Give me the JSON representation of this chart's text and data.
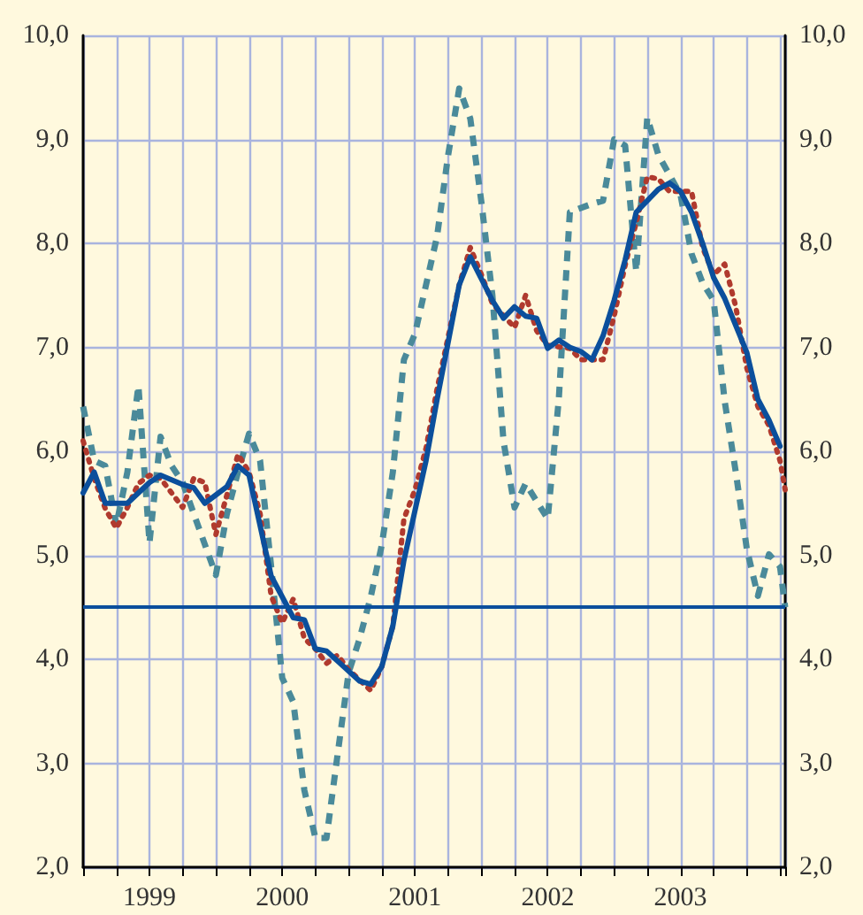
{
  "chart_data": {
    "type": "line",
    "xlim": [
      "1999-01",
      "2004-04-15"
    ],
    "xticks": [
      {
        "value": "1999-01",
        "label": null
      },
      {
        "value": "1999-04",
        "label": null
      },
      {
        "value": "1999-07",
        "label": "1999"
      },
      {
        "value": "1999-10",
        "label": null
      },
      {
        "value": "2000-01",
        "label": null
      },
      {
        "value": "2000-04",
        "label": null
      },
      {
        "value": "2000-07",
        "label": "2000"
      },
      {
        "value": "2000-10",
        "label": null
      },
      {
        "value": "2001-01",
        "label": null
      },
      {
        "value": "2001-04",
        "label": null
      },
      {
        "value": "2001-07",
        "label": "2001"
      },
      {
        "value": "2001-10",
        "label": null
      },
      {
        "value": "2002-01",
        "label": null
      },
      {
        "value": "2002-04",
        "label": null
      },
      {
        "value": "2002-07",
        "label": "2002"
      },
      {
        "value": "2002-10",
        "label": null
      },
      {
        "value": "2003-01",
        "label": null
      },
      {
        "value": "2003-04",
        "label": null
      },
      {
        "value": "2003-07",
        "label": "2003"
      },
      {
        "value": "2003-10",
        "label": null
      },
      {
        "value": "2004-01",
        "label": null
      },
      {
        "value": "2004-04",
        "label": null
      }
    ],
    "ylim": [
      2,
      10
    ],
    "yticks": [
      {
        "value": 2,
        "label": "2,0"
      },
      {
        "value": 3,
        "label": "3,0"
      },
      {
        "value": 4,
        "label": "4,0"
      },
      {
        "value": 5,
        "label": "5,0"
      },
      {
        "value": 6,
        "label": "6,0"
      },
      {
        "value": 7,
        "label": "7,0"
      },
      {
        "value": 8,
        "label": "8,0"
      },
      {
        "value": 9,
        "label": "9,0"
      },
      {
        "value": 10,
        "label": "10,0"
      }
    ],
    "y2lim": [
      2,
      10
    ],
    "y2ticks": [
      {
        "value": 2,
        "label": "2,0"
      },
      {
        "value": 3,
        "label": "3,0"
      },
      {
        "value": 4,
        "label": "4,0"
      },
      {
        "value": 5,
        "label": "5,0"
      },
      {
        "value": 6,
        "label": "6,0"
      },
      {
        "value": 7,
        "label": "7,0"
      },
      {
        "value": 8,
        "label": "8,0"
      },
      {
        "value": 9,
        "label": "9,0"
      },
      {
        "value": 10,
        "label": "10,0"
      }
    ],
    "grid": true,
    "marker": "none",
    "ref_lines": [
      {
        "axis": "y",
        "value": 4.5,
        "color": "#0b4f9c",
        "line_style": "solid"
      }
    ],
    "series": [
      {
        "color": "#4a8a9a",
        "line_style": "dashed",
        "x": [
          "1999-01",
          "1999-02",
          "1999-03",
          "1999-04",
          "1999-05",
          "1999-06",
          "1999-07",
          "1999-08",
          "1999-09",
          "1999-10",
          "1999-11",
          "2000-01",
          "2000-02",
          "2000-03",
          "2000-04",
          "2000-05",
          "2000-06",
          "2000-07",
          "2000-08",
          "2000-09",
          "2000-10",
          "2000-11",
          "2000-12",
          "2001-01",
          "2001-02",
          "2001-03",
          "2001-04",
          "2001-05",
          "2001-06",
          "2001-07",
          "2001-09",
          "2001-10",
          "2001-11",
          "2001-12",
          "2002-01",
          "2002-02",
          "2002-03",
          "2002-04",
          "2002-05",
          "2002-07",
          "2002-08",
          "2002-09",
          "2002-11",
          "2002-12",
          "2003-01",
          "2003-02",
          "2003-03",
          "2003-04",
          "2003-05",
          "2003-07",
          "2003-08",
          "2003-09",
          "2003-10",
          "2003-11",
          "2003-12",
          "2004-01",
          "2004-02",
          "2004-03",
          "2004-04",
          "2004-04-15"
        ],
        "values": [
          6.43,
          5.91,
          5.86,
          5.29,
          5.8,
          6.63,
          5.12,
          6.14,
          5.86,
          5.7,
          5.4,
          4.81,
          5.4,
          5.8,
          6.17,
          5.91,
          4.89,
          3.82,
          3.59,
          2.74,
          2.28,
          2.28,
          3.08,
          3.87,
          4.2,
          4.6,
          5.1,
          5.8,
          6.88,
          7.13,
          8.07,
          8.85,
          9.49,
          9.2,
          8.4,
          7.5,
          6.1,
          5.46,
          5.69,
          5.35,
          6.5,
          8.3,
          8.38,
          8.41,
          9.0,
          8.94,
          7.73,
          9.21,
          8.85,
          8.47,
          7.9,
          7.62,
          7.45,
          6.48,
          5.8,
          5.06,
          4.61,
          5.01,
          4.89,
          4.5
        ]
      },
      {
        "color": "#b03a2e",
        "line_style": "dotted",
        "x": [
          "1999-01",
          "1999-02",
          "1999-03",
          "1999-04",
          "1999-05",
          "1999-06",
          "1999-07",
          "1999-08",
          "1999-10",
          "1999-11",
          "1999-12",
          "2000-01",
          "2000-02",
          "2000-03",
          "2000-04",
          "2000-05",
          "2000-06",
          "2000-07",
          "2000-08",
          "2000-09",
          "2000-10",
          "2000-11",
          "2000-12",
          "2001-01",
          "2001-03",
          "2001-04",
          "2001-05",
          "2001-06",
          "2001-07",
          "2001-08",
          "2001-09",
          "2001-10",
          "2001-11",
          "2001-12",
          "2002-01",
          "2002-02",
          "2002-04",
          "2002-05",
          "2002-06",
          "2002-07",
          "2002-09",
          "2002-10",
          "2002-12",
          "2003-01",
          "2003-02",
          "2003-03",
          "2003-04",
          "2003-05",
          "2003-06",
          "2003-08",
          "2003-09",
          "2003-10",
          "2003-11",
          "2003-12",
          "2004-01",
          "2004-02",
          "2004-03",
          "2004-04",
          "2004-04-15"
        ],
        "values": [
          6.1,
          5.74,
          5.45,
          5.26,
          5.46,
          5.69,
          5.77,
          5.74,
          5.46,
          5.74,
          5.7,
          5.2,
          5.58,
          5.97,
          5.8,
          5.4,
          4.61,
          4.35,
          4.58,
          4.2,
          4.1,
          3.96,
          4.04,
          3.9,
          3.7,
          3.93,
          4.32,
          5.35,
          5.63,
          6.03,
          6.6,
          7.1,
          7.6,
          7.96,
          7.7,
          7.42,
          7.19,
          7.5,
          7.16,
          7.02,
          6.99,
          6.88,
          6.88,
          7.3,
          7.79,
          8.2,
          8.64,
          8.62,
          8.5,
          8.5,
          7.96,
          7.7,
          7.8,
          7.39,
          6.8,
          6.43,
          6.25,
          5.91,
          5.63
        ]
      },
      {
        "color": "#0b4f9c",
        "line_style": "solid",
        "x": [
          "1999-01",
          "1999-02",
          "1999-03",
          "1999-05",
          "1999-07",
          "1999-08",
          "1999-10",
          "1999-11",
          "1999-12",
          "2000-02",
          "2000-03",
          "2000-04",
          "2000-06",
          "2000-08",
          "2000-09",
          "2000-10",
          "2000-11",
          "2001-02",
          "2001-03",
          "2001-04",
          "2001-05",
          "2001-06",
          "2001-08",
          "2001-09",
          "2001-10",
          "2001-11",
          "2001-12",
          "2002-02",
          "2002-03",
          "2002-04",
          "2002-05",
          "2002-06",
          "2002-07",
          "2002-08",
          "2002-09",
          "2002-10",
          "2002-11",
          "2002-12",
          "2003-01",
          "2003-02",
          "2003-03",
          "2003-05",
          "2003-06",
          "2003-07",
          "2003-08",
          "2003-09",
          "2003-10",
          "2003-11",
          "2004-01",
          "2004-02",
          "2004-03",
          "2004-04"
        ],
        "values": [
          5.6,
          5.8,
          5.5,
          5.5,
          5.7,
          5.77,
          5.68,
          5.65,
          5.5,
          5.66,
          5.86,
          5.77,
          4.8,
          4.4,
          4.38,
          4.1,
          4.08,
          3.79,
          3.76,
          3.93,
          4.32,
          4.95,
          5.91,
          6.5,
          7.05,
          7.6,
          7.87,
          7.45,
          7.28,
          7.39,
          7.3,
          7.28,
          6.99,
          7.07,
          7.0,
          6.96,
          6.88,
          7.11,
          7.45,
          7.84,
          8.3,
          8.52,
          8.58,
          8.5,
          8.3,
          8.0,
          7.67,
          7.47,
          6.95,
          6.5,
          6.3,
          6.05
        ]
      }
    ]
  }
}
